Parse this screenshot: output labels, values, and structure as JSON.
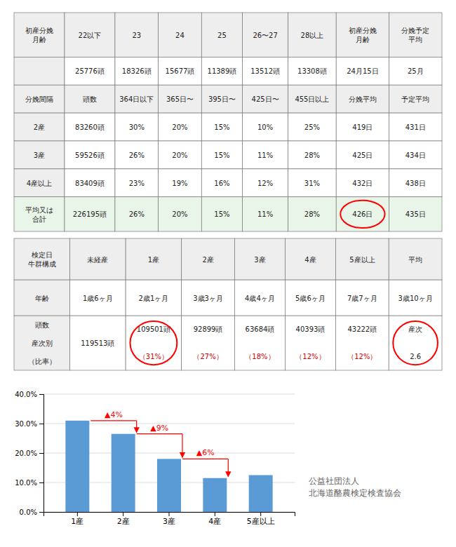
{
  "chart_data": {
    "type": "bar",
    "categories": [
      "1産",
      "2産",
      "3産",
      "4産",
      "5産以上"
    ],
    "values": [
      31.0,
      26.5,
      18.0,
      11.5,
      12.5
    ],
    "color": "#5b9bd5",
    "ylim": [
      0,
      40
    ],
    "yticks": [
      {
        "value": 0.0,
        "label": "0.0%"
      },
      {
        "value": 10.0,
        "label": "10.0%"
      },
      {
        "value": 20.0,
        "label": "20.0%"
      },
      {
        "value": 30.0,
        "label": "30.0%"
      },
      {
        "value": 40.0,
        "label": "40.0%"
      }
    ],
    "grid": true,
    "annotations": [
      {
        "text": "▲4%",
        "from": "1産",
        "to": "2産"
      },
      {
        "text": "▲9%",
        "from": "2産",
        "to": "3産"
      },
      {
        "text": "▲6%",
        "from": "3産",
        "to": "4産"
      }
    ]
  },
  "tables": [
    {
      "rows": [
        [
          "初産分娩\n月齢",
          "22以下",
          "23",
          "24",
          "25",
          "26〜27",
          "28以上",
          "初産分娩\n月齢",
          "分娩予定\n平均"
        ],
        [
          null,
          "25776頭",
          "18326頭",
          "15677頭",
          "11389頭",
          "13512頭",
          "13308頭",
          "24月15日",
          "25月"
        ],
        [
          "分娩間隔",
          "頭数",
          "364日以下",
          "365日〜",
          "395日〜",
          "425日〜",
          "455日以上",
          "分娩平均",
          "予定平均"
        ],
        [
          "2産",
          "83260頭",
          "30%",
          "20%",
          "15%",
          "10%",
          "25%",
          "419日",
          "431日"
        ],
        [
          "3産",
          "59526頭",
          "26%",
          "20%",
          "15%",
          "11%",
          "28%",
          "425日",
          "434日"
        ],
        [
          "4産以上",
          "83409頭",
          "23%",
          "19%",
          "16%",
          "12%",
          "31%",
          "432日",
          "438日"
        ],
        [
          "平均又は\n合計",
          "226195頭",
          "26%",
          "20%",
          "15%",
          "11%",
          "28%",
          "426日",
          "435日"
        ]
      ]
    },
    {
      "rows": [
        [
          "検定日\n牛群構成",
          "未経産",
          "1産",
          "2産",
          "3産",
          "4産",
          "5産以上",
          "平均"
        ],
        [
          "年齢",
          "1歳6ヶ月",
          "2歳1ヶ月",
          "3歳3ヶ月",
          "4歳4ヶ月",
          "5歳6ヶ月",
          "7歳7ヶ月",
          "3歳10ヶ月"
        ],
        [
          [
            "頭数",
            "産次別",
            "（比率）"
          ],
          [
            "119513頭"
          ],
          [
            "109501頭",
            "（31%）"
          ],
          [
            "92899頭",
            "（27%）"
          ],
          [
            "63684頭",
            "（18%）"
          ],
          [
            "40393頭",
            "（12%）"
          ],
          [
            "43222頭",
            "（12%）"
          ],
          [
            "産次",
            "2.6"
          ]
        ]
      ]
    }
  ],
  "footer": "公益社団法人\n北海道酪農検定検査協会"
}
